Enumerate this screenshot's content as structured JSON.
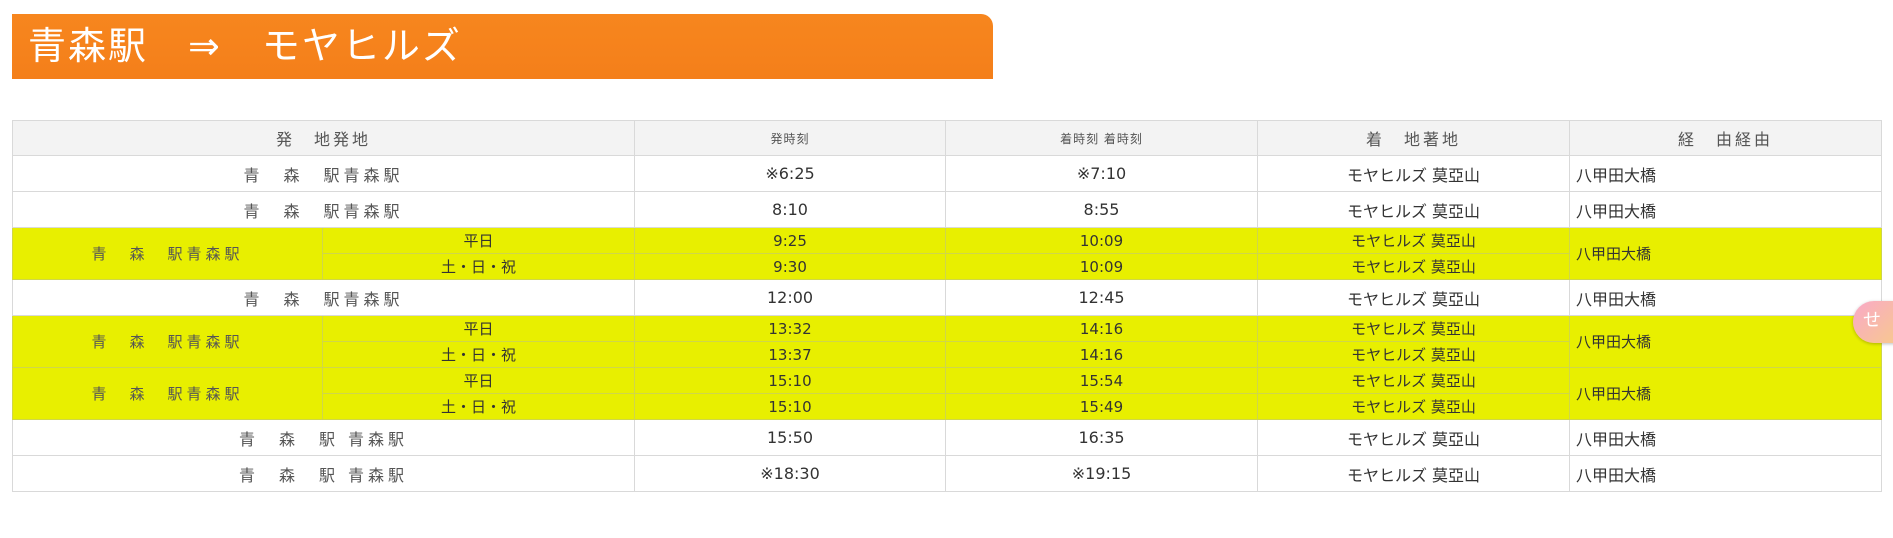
{
  "header": {
    "title": "青森駅　⇒　モヤヒルズ"
  },
  "table": {
    "columns": {
      "origin": "発　地発地",
      "departure": "発時刻",
      "arrival": "着時刻 着時刻",
      "destination": "着　地著地",
      "route": "経　由経由"
    },
    "rows": [
      {
        "origin": "青　森　駅青森駅",
        "departure": "※6:25",
        "arrival": "※7:10",
        "destination": "モヤヒルズ 莫亞山",
        "route": "八甲田大橋"
      },
      {
        "origin": "青　森　駅青森駅",
        "departure": "8:10",
        "arrival": "8:55",
        "destination": "モヤヒルズ 莫亞山",
        "route": "八甲田大橋"
      },
      {
        "origin": "青　森　駅青森駅",
        "route": "八甲田大橋",
        "sub": [
          {
            "day": "平日",
            "departure": "9:25",
            "arrival": "10:09",
            "destination": "モヤヒルズ 莫亞山"
          },
          {
            "day": "土・日・祝",
            "departure": "9:30",
            "arrival": "10:09",
            "destination": "モヤヒルズ 莫亞山"
          }
        ]
      },
      {
        "origin": "青　森　駅青森駅",
        "departure": "12:00",
        "arrival": "12:45",
        "destination": "モヤヒルズ 莫亞山",
        "route": "八甲田大橋"
      },
      {
        "origin": "青　森　駅青森駅",
        "route": "八甲田大橋",
        "sub": [
          {
            "day": "平日",
            "departure": "13:32",
            "arrival": "14:16",
            "destination": "モヤヒルズ 莫亞山"
          },
          {
            "day": "土・日・祝",
            "departure": "13:37",
            "arrival": "14:16",
            "destination": "モヤヒルズ 莫亞山"
          }
        ]
      },
      {
        "origin": "青　森　駅青森駅",
        "route": "八甲田大橋",
        "sub": [
          {
            "day": "平日",
            "departure": "15:10",
            "arrival": "15:54",
            "destination": "モヤヒルズ 莫亞山"
          },
          {
            "day": "土・日・祝",
            "departure": "15:10",
            "arrival": "15:49",
            "destination": "モヤヒルズ 莫亞山"
          }
        ]
      },
      {
        "origin": "青　森　駅 青森駅",
        "departure": "15:50",
        "arrival": "16:35",
        "destination": "モヤヒルズ 莫亞山",
        "route": "八甲田大橋"
      },
      {
        "origin": "青　森　駅 青森駅",
        "departure": "※18:30",
        "arrival": "※19:15",
        "destination": "モヤヒルズ 莫亞山",
        "route": "八甲田大橋"
      }
    ]
  },
  "colors": {
    "banner": "#f47f1a",
    "highlight_row": "#e8ef00",
    "header_bg": "#f3f3f3"
  },
  "side_widget": {
    "glyph": "せ",
    "icon": "translate-widget-icon"
  }
}
